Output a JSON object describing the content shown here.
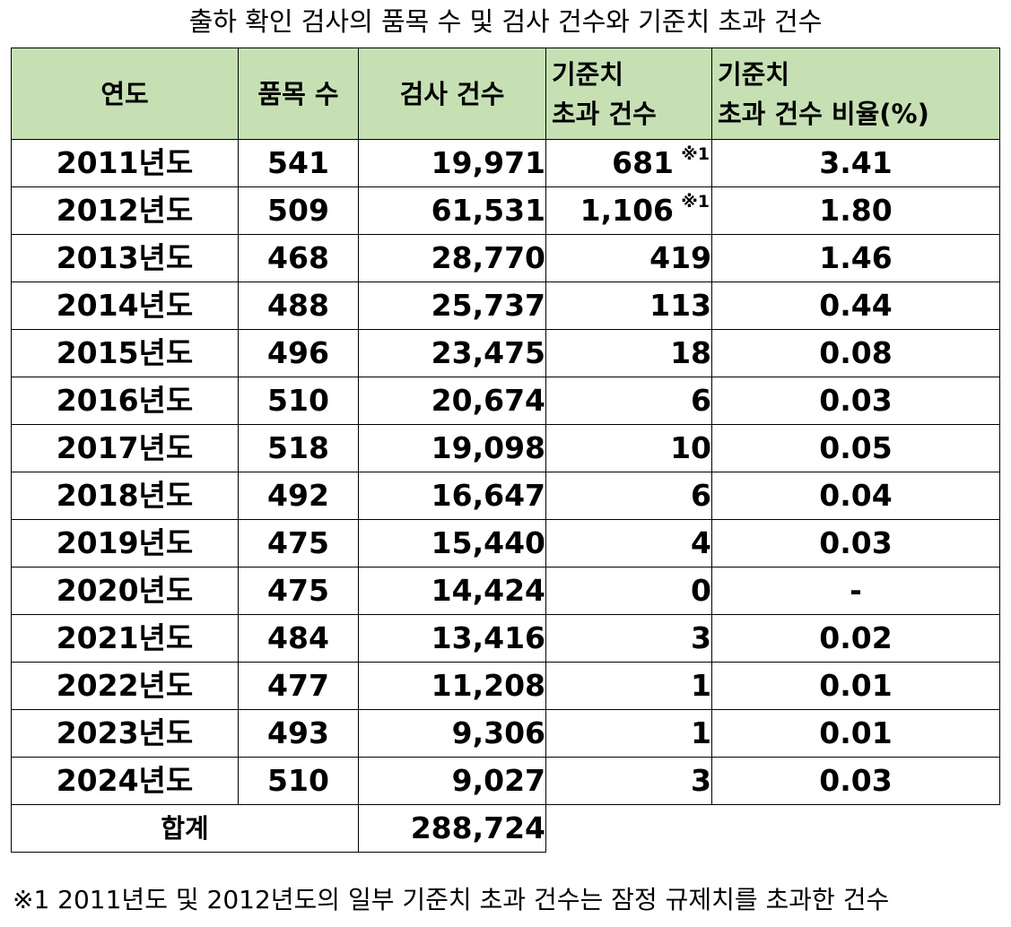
{
  "title": "출하 확인 검사의 품목 수 및 검사 건수와 기준치 초과 건수",
  "headers": {
    "year": "연도",
    "items": "품목 수",
    "inspections": "검사 건수",
    "exceed_line1": "기준치",
    "exceed_line2": "초과 건수",
    "ratio_line1": "기준치",
    "ratio_line2": "초과 건수 비율(%)"
  },
  "rows": [
    {
      "year": "2011년도",
      "items": "541",
      "inspections": "19,971",
      "exceed": "681",
      "note": "※1",
      "ratio": "3.41"
    },
    {
      "year": "2012년도",
      "items": "509",
      "inspections": "61,531",
      "exceed": "1,106",
      "note": "※1",
      "ratio": "1.80"
    },
    {
      "year": "2013년도",
      "items": "468",
      "inspections": "28,770",
      "exceed": "419",
      "note": "",
      "ratio": "1.46"
    },
    {
      "year": "2014년도",
      "items": "488",
      "inspections": "25,737",
      "exceed": "113",
      "note": "",
      "ratio": "0.44"
    },
    {
      "year": "2015년도",
      "items": "496",
      "inspections": "23,475",
      "exceed": "18",
      "note": "",
      "ratio": "0.08"
    },
    {
      "year": "2016년도",
      "items": "510",
      "inspections": "20,674",
      "exceed": "6",
      "note": "",
      "ratio": "0.03"
    },
    {
      "year": "2017년도",
      "items": "518",
      "inspections": "19,098",
      "exceed": "10",
      "note": "",
      "ratio": "0.05"
    },
    {
      "year": "2018년도",
      "items": "492",
      "inspections": "16,647",
      "exceed": "6",
      "note": "",
      "ratio": "0.04"
    },
    {
      "year": "2019년도",
      "items": "475",
      "inspections": "15,440",
      "exceed": "4",
      "note": "",
      "ratio": "0.03"
    },
    {
      "year": "2020년도",
      "items": "475",
      "inspections": "14,424",
      "exceed": "0",
      "note": "",
      "ratio": "-"
    },
    {
      "year": "2021년도",
      "items": "484",
      "inspections": "13,416",
      "exceed": "3",
      "note": "",
      "ratio": "0.02"
    },
    {
      "year": "2022년도",
      "items": "477",
      "inspections": "11,208",
      "exceed": "1",
      "note": "",
      "ratio": "0.01"
    },
    {
      "year": "2023년도",
      "items": "493",
      "inspections": "9,306",
      "exceed": "1",
      "note": "",
      "ratio": "0.01"
    },
    {
      "year": "2024년도",
      "items": "510",
      "inspections": "9,027",
      "exceed": "3",
      "note": "",
      "ratio": "0.03"
    }
  ],
  "total": {
    "label": "합계",
    "inspections": "288,724"
  },
  "footnote": "※1 2011년도 및 2012년도의 일부 기준치 초과 건수는 잠정 규제치를 초과한 건수",
  "colors": {
    "header_bg": "#c6e0b4",
    "border": "#000000"
  }
}
